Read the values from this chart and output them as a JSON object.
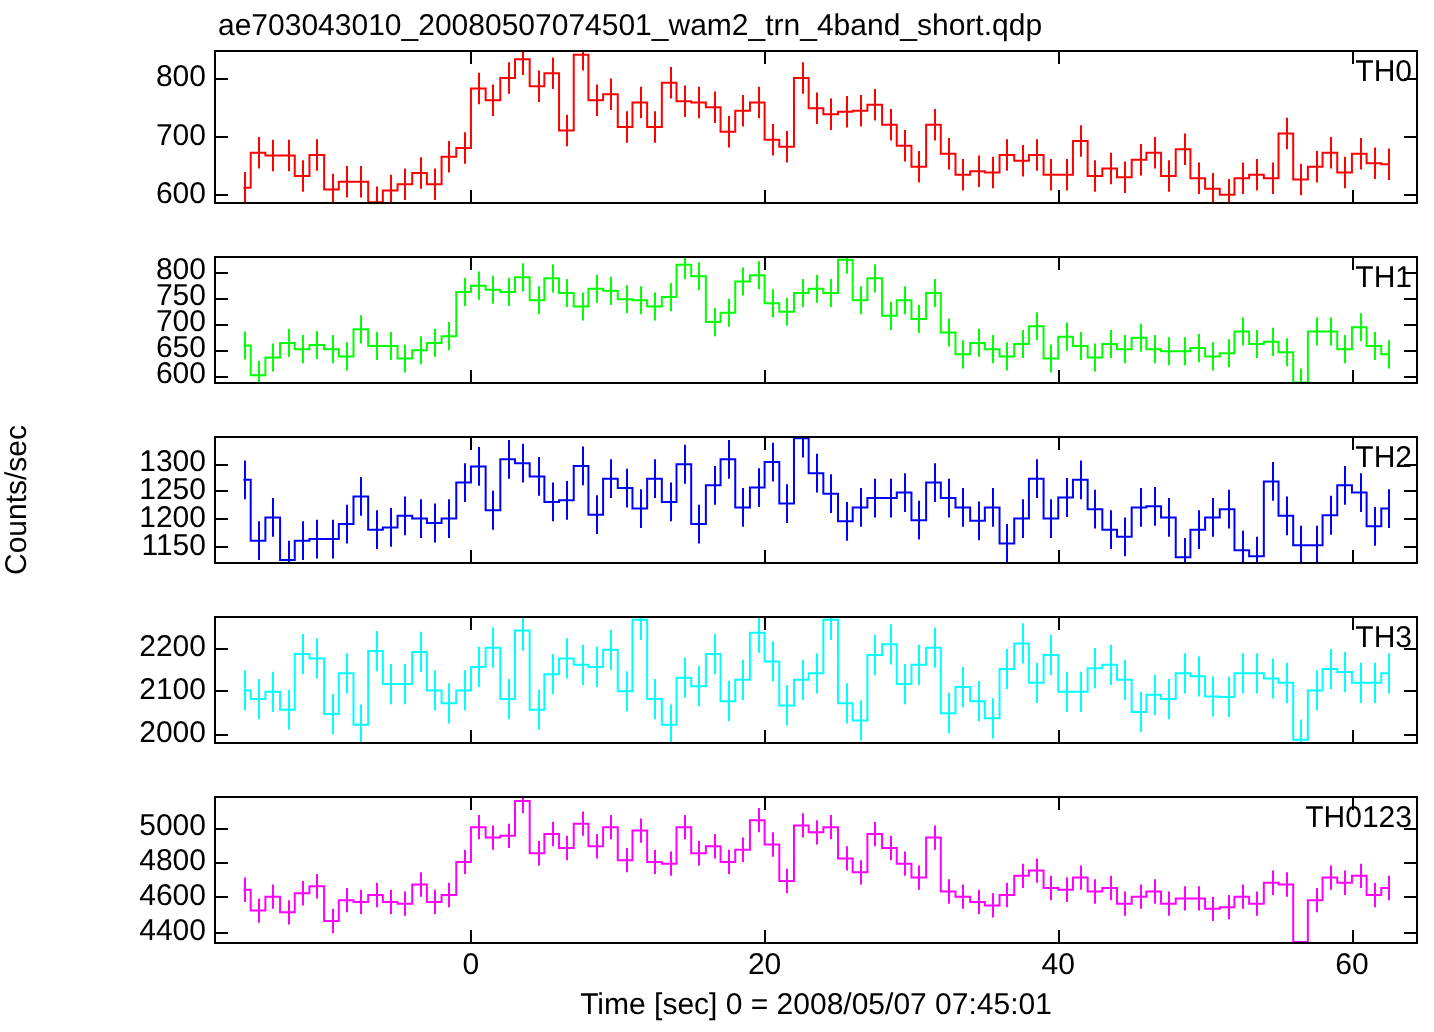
{
  "chart_data": [
    {
      "type": "step",
      "title": "ae703043010_20080507074501_wam2_trn_4band_short.qdp",
      "marker": "none",
      "tick_labels": "y",
      "xlim": [
        -17.5,
        64.5
      ],
      "xticks": [
        0,
        20,
        40,
        60
      ],
      "ylim": [
        584,
        848
      ],
      "yticks": [
        600,
        700,
        800
      ],
      "x": [
        -15.5,
        -14.5,
        -13.5,
        -12.5,
        -11.5,
        -10.5,
        -9.5,
        -8.5,
        -7.5,
        -6.5,
        -5.5,
        -4.5,
        -3.5,
        -2.5,
        -1.5,
        -0.5,
        0.5,
        1.5,
        2.5,
        3.5,
        4.5,
        5.5,
        6.5,
        7.5,
        8.5,
        9.5,
        10.5,
        11.5,
        12.5,
        13.5,
        14.5,
        15.5,
        16.5,
        17.5,
        18.5,
        19.5,
        20.5,
        21.5,
        22.5,
        23.5,
        24.5,
        25.5,
        26.5,
        27.5,
        28.5,
        29.5,
        30.5,
        31.5,
        32.5,
        33.5,
        34.5,
        35.5,
        36.5,
        37.5,
        38.5,
        39.5,
        40.5,
        41.5,
        42.5,
        43.5,
        44.5,
        45.5,
        46.5,
        47.5,
        48.5,
        49.5,
        50.5,
        51.5,
        52.5,
        53.5,
        54.5,
        55.5,
        56.5,
        57.5,
        58.5,
        59.5,
        60.5,
        61.5,
        62.5
      ],
      "series": [
        {
          "name": "TH0",
          "color": "#ff0000",
          "values": [
            612,
            672,
            667,
            667,
            632,
            668,
            609,
            622,
            622,
            587,
            607,
            618,
            637,
            618,
            665,
            680,
            782,
            762,
            800,
            832,
            786,
            808,
            710,
            840,
            762,
            772,
            716,
            758,
            716,
            792,
            760,
            758,
            750,
            708,
            744,
            758,
            694,
            682,
            800,
            748,
            738,
            742,
            744,
            754,
            720,
            684,
            648,
            720,
            670,
            634,
            640,
            638,
            668,
            658,
            668,
            634,
            634,
            692,
            632,
            645,
            630,
            660,
            672,
            632,
            678,
            628,
            610,
            600,
            628,
            634,
            628,
            705,
            626,
            648,
            672,
            638,
            670,
            654,
            652
          ],
          "errors": [
            27,
            27,
            27,
            27,
            27,
            27,
            27,
            27,
            27,
            27,
            27,
            27,
            27,
            27,
            27,
            27,
            27,
            27,
            27,
            27,
            27,
            27,
            27,
            27,
            27,
            27,
            27,
            27,
            27,
            27,
            27,
            27,
            27,
            27,
            27,
            27,
            27,
            27,
            27,
            27,
            27,
            27,
            27,
            27,
            27,
            27,
            27,
            27,
            27,
            27,
            27,
            27,
            27,
            27,
            27,
            27,
            27,
            27,
            27,
            27,
            27,
            27,
            27,
            27,
            27,
            27,
            27,
            27,
            27,
            27,
            27,
            27,
            27,
            27,
            27,
            27,
            27,
            27,
            27
          ]
        }
      ]
    },
    {
      "type": "step",
      "marker": "none",
      "tick_labels": "y",
      "xlim": [
        -17.5,
        64.5
      ],
      "xticks": [
        0,
        20,
        40,
        60
      ],
      "ylim": [
        583,
        829
      ],
      "yticks": [
        600,
        650,
        700,
        750,
        800
      ],
      "x": [
        -15.5,
        -14.5,
        -13.5,
        -12.5,
        -11.5,
        -10.5,
        -9.5,
        -8.5,
        -7.5,
        -6.5,
        -5.5,
        -4.5,
        -3.5,
        -2.5,
        -1.5,
        -0.5,
        0.5,
        1.5,
        2.5,
        3.5,
        4.5,
        5.5,
        6.5,
        7.5,
        8.5,
        9.5,
        10.5,
        11.5,
        12.5,
        13.5,
        14.5,
        15.5,
        16.5,
        17.5,
        18.5,
        19.5,
        20.5,
        21.5,
        22.5,
        23.5,
        24.5,
        25.5,
        26.5,
        27.5,
        28.5,
        29.5,
        30.5,
        31.5,
        32.5,
        33.5,
        34.5,
        35.5,
        36.5,
        37.5,
        38.5,
        39.5,
        40.5,
        41.5,
        42.5,
        43.5,
        44.5,
        45.5,
        46.5,
        47.5,
        48.5,
        49.5,
        50.5,
        51.5,
        52.5,
        53.5,
        54.5,
        55.5,
        56.5,
        57.5,
        58.5,
        59.5,
        60.5,
        61.5,
        62.5
      ],
      "series": [
        {
          "name": "TH1",
          "color": "#00ff00",
          "values": [
            657,
            600,
            634,
            662,
            650,
            658,
            650,
            636,
            688,
            656,
            656,
            632,
            648,
            662,
            675,
            760,
            772,
            764,
            760,
            788,
            744,
            786,
            758,
            732,
            766,
            762,
            746,
            744,
            732,
            750,
            812,
            790,
            702,
            720,
            780,
            792,
            738,
            722,
            758,
            766,
            758,
            822,
            744,
            786,
            714,
            744,
            708,
            758,
            682,
            640,
            662,
            650,
            636,
            660,
            694,
            632,
            674,
            656,
            634,
            660,
            650,
            672,
            650,
            646,
            646,
            652,
            636,
            642,
            684,
            660,
            664,
            644,
            586,
            684,
            684,
            650,
            692,
            656,
            640
          ],
          "errors": [
            27,
            27,
            27,
            27,
            27,
            27,
            27,
            27,
            27,
            27,
            27,
            27,
            27,
            27,
            27,
            27,
            27,
            27,
            27,
            27,
            27,
            27,
            27,
            27,
            27,
            27,
            27,
            27,
            27,
            27,
            27,
            27,
            27,
            27,
            27,
            27,
            27,
            27,
            27,
            27,
            27,
            27,
            27,
            27,
            27,
            27,
            27,
            27,
            27,
            27,
            27,
            27,
            27,
            27,
            27,
            27,
            27,
            27,
            27,
            27,
            27,
            27,
            27,
            27,
            27,
            27,
            27,
            27,
            27,
            27,
            27,
            27,
            27,
            27,
            27,
            27,
            27,
            27,
            27
          ]
        }
      ]
    },
    {
      "type": "step",
      "marker": "none",
      "tick_labels": "y",
      "ylabel": "Counts/sec",
      "xlim": [
        -17.5,
        64.5
      ],
      "xticks": [
        0,
        20,
        40,
        60
      ],
      "ylim": [
        1118,
        1349
      ],
      "yticks": [
        1150,
        1200,
        1250,
        1300
      ],
      "x": [
        -15.5,
        -14.5,
        -13.5,
        -12.5,
        -11.5,
        -10.5,
        -9.5,
        -8.5,
        -7.5,
        -6.5,
        -5.5,
        -4.5,
        -3.5,
        -2.5,
        -1.5,
        -0.5,
        0.5,
        1.5,
        2.5,
        3.5,
        4.5,
        5.5,
        6.5,
        7.5,
        8.5,
        9.5,
        10.5,
        11.5,
        12.5,
        13.5,
        14.5,
        15.5,
        16.5,
        17.5,
        18.5,
        19.5,
        20.5,
        21.5,
        22.5,
        23.5,
        24.5,
        25.5,
        26.5,
        27.5,
        28.5,
        29.5,
        30.5,
        31.5,
        32.5,
        33.5,
        34.5,
        35.5,
        36.5,
        37.5,
        38.5,
        39.5,
        40.5,
        41.5,
        42.5,
        43.5,
        44.5,
        45.5,
        46.5,
        47.5,
        48.5,
        49.5,
        50.5,
        51.5,
        52.5,
        53.5,
        54.5,
        55.5,
        56.5,
        57.5,
        58.5,
        59.5,
        60.5,
        61.5,
        62.5
      ],
      "series": [
        {
          "name": "TH2",
          "color": "#0000ff",
          "values": [
            1270,
            1160,
            1202,
            1125,
            1160,
            1163,
            1163,
            1190,
            1240,
            1180,
            1184,
            1205,
            1200,
            1192,
            1200,
            1265,
            1294,
            1215,
            1307,
            1300,
            1276,
            1230,
            1233,
            1295,
            1207,
            1272,
            1255,
            1218,
            1272,
            1230,
            1298,
            1190,
            1260,
            1307,
            1220,
            1256,
            1302,
            1227,
            1345,
            1282,
            1245,
            1195,
            1220,
            1237,
            1237,
            1247,
            1197,
            1265,
            1237,
            1220,
            1196,
            1220,
            1155,
            1200,
            1272,
            1200,
            1238,
            1270,
            1217,
            1180,
            1167,
            1220,
            1222,
            1202,
            1130,
            1180,
            1202,
            1217,
            1143,
            1132,
            1267,
            1205,
            1152,
            1152,
            1206,
            1260,
            1247,
            1186,
            1218
          ],
          "errors": [
            35,
            35,
            35,
            35,
            35,
            35,
            35,
            35,
            35,
            35,
            35,
            35,
            35,
            35,
            35,
            35,
            35,
            35,
            35,
            35,
            35,
            35,
            35,
            35,
            35,
            35,
            35,
            35,
            35,
            35,
            35,
            35,
            35,
            35,
            35,
            35,
            35,
            35,
            35,
            35,
            35,
            35,
            35,
            35,
            35,
            35,
            35,
            35,
            35,
            35,
            35,
            35,
            35,
            35,
            35,
            35,
            35,
            35,
            35,
            35,
            35,
            35,
            35,
            35,
            35,
            35,
            35,
            35,
            35,
            35,
            35,
            35,
            35,
            35,
            35,
            35,
            35,
            35,
            35
          ]
        }
      ]
    },
    {
      "type": "step",
      "marker": "none",
      "tick_labels": "y",
      "xlim": [
        -17.5,
        64.5
      ],
      "xticks": [
        0,
        20,
        40,
        60
      ],
      "ylim": [
        1975,
        2274
      ],
      "yticks": [
        2000,
        2100,
        2200
      ],
      "x": [
        -15.5,
        -14.5,
        -13.5,
        -12.5,
        -11.5,
        -10.5,
        -9.5,
        -8.5,
        -7.5,
        -6.5,
        -5.5,
        -4.5,
        -3.5,
        -2.5,
        -1.5,
        -0.5,
        0.5,
        1.5,
        2.5,
        3.5,
        4.5,
        5.5,
        6.5,
        7.5,
        8.5,
        9.5,
        10.5,
        11.5,
        12.5,
        13.5,
        14.5,
        15.5,
        16.5,
        17.5,
        18.5,
        19.5,
        20.5,
        21.5,
        22.5,
        23.5,
        24.5,
        25.5,
        26.5,
        27.5,
        28.5,
        29.5,
        30.5,
        31.5,
        32.5,
        33.5,
        34.5,
        35.5,
        36.5,
        37.5,
        38.5,
        39.5,
        40.5,
        41.5,
        42.5,
        43.5,
        44.5,
        45.5,
        46.5,
        47.5,
        48.5,
        49.5,
        50.5,
        51.5,
        52.5,
        53.5,
        54.5,
        55.5,
        56.5,
        57.5,
        58.5,
        59.5,
        60.5,
        61.5,
        62.5
      ],
      "series": [
        {
          "name": "TH3",
          "color": "#00ffff",
          "values": [
            2100,
            2080,
            2097,
            2055,
            2185,
            2175,
            2045,
            2140,
            2020,
            2192,
            2115,
            2115,
            2190,
            2100,
            2070,
            2100,
            2155,
            2200,
            2080,
            2240,
            2055,
            2138,
            2175,
            2160,
            2155,
            2195,
            2098,
            2265,
            2080,
            2020,
            2130,
            2110,
            2185,
            2075,
            2125,
            2235,
            2168,
            2065,
            2125,
            2140,
            2265,
            2070,
            2030,
            2183,
            2208,
            2115,
            2160,
            2200,
            2047,
            2108,
            2075,
            2035,
            2150,
            2210,
            2118,
            2183,
            2097,
            2097,
            2152,
            2160,
            2125,
            2050,
            2090,
            2080,
            2140,
            2133,
            2086,
            2085,
            2140,
            2140,
            2128,
            2118,
            1985,
            2100,
            2150,
            2143,
            2118,
            2118,
            2140
          ],
          "errors": [
            47,
            47,
            47,
            47,
            47,
            47,
            47,
            47,
            47,
            47,
            47,
            47,
            47,
            47,
            47,
            47,
            47,
            47,
            47,
            47,
            47,
            47,
            47,
            47,
            47,
            47,
            47,
            47,
            47,
            47,
            47,
            47,
            47,
            47,
            47,
            47,
            47,
            47,
            47,
            47,
            47,
            47,
            47,
            47,
            47,
            47,
            47,
            47,
            47,
            47,
            47,
            47,
            47,
            47,
            47,
            47,
            47,
            47,
            47,
            47,
            47,
            47,
            47,
            47,
            47,
            47,
            47,
            47,
            47,
            47,
            47,
            47,
            47,
            47,
            47,
            47,
            47,
            47,
            47
          ]
        }
      ]
    },
    {
      "type": "step",
      "marker": "none",
      "xlabel": "Time [sec] 0 = 2008/05/07 07:45:01",
      "xlim": [
        -17.5,
        64.5
      ],
      "xticks": [
        0,
        20,
        40,
        60
      ],
      "ylim": [
        4328,
        5179
      ],
      "yticks": [
        4400,
        4600,
        4800,
        5000
      ],
      "x": [
        -15.5,
        -14.5,
        -13.5,
        -12.5,
        -11.5,
        -10.5,
        -9.5,
        -8.5,
        -7.5,
        -6.5,
        -5.5,
        -4.5,
        -3.5,
        -2.5,
        -1.5,
        -0.5,
        0.5,
        1.5,
        2.5,
        3.5,
        4.5,
        5.5,
        6.5,
        7.5,
        8.5,
        9.5,
        10.5,
        11.5,
        12.5,
        13.5,
        14.5,
        15.5,
        16.5,
        17.5,
        18.5,
        19.5,
        20.5,
        21.5,
        22.5,
        23.5,
        24.5,
        25.5,
        26.5,
        27.5,
        28.5,
        29.5,
        30.5,
        31.5,
        32.5,
        33.5,
        34.5,
        35.5,
        36.5,
        37.5,
        38.5,
        39.5,
        40.5,
        41.5,
        42.5,
        43.5,
        44.5,
        45.5,
        46.5,
        47.5,
        48.5,
        49.5,
        50.5,
        51.5,
        52.5,
        53.5,
        54.5,
        55.5,
        56.5,
        57.5,
        58.5,
        59.5,
        60.5,
        61.5,
        62.5
      ],
      "series": [
        {
          "name": "TH0123",
          "color": "#ff00ff",
          "values": [
            4640,
            4520,
            4600,
            4510,
            4620,
            4660,
            4460,
            4580,
            4570,
            4610,
            4570,
            4560,
            4670,
            4570,
            4610,
            4800,
            5000,
            4940,
            4950,
            5150,
            4850,
            4960,
            4880,
            5020,
            4890,
            5000,
            4810,
            4980,
            4800,
            4790,
            5000,
            4850,
            4890,
            4800,
            4870,
            5040,
            4900,
            4690,
            5010,
            4970,
            5000,
            4820,
            4740,
            4960,
            4880,
            4790,
            4710,
            4940,
            4630,
            4600,
            4570,
            4550,
            4610,
            4720,
            4750,
            4650,
            4640,
            4710,
            4630,
            4650,
            4560,
            4600,
            4630,
            4560,
            4590,
            4590,
            4530,
            4540,
            4600,
            4560,
            4680,
            4670,
            4340,
            4580,
            4710,
            4680,
            4720,
            4610,
            4650
          ],
          "errors": [
            70,
            70,
            70,
            70,
            70,
            70,
            70,
            70,
            70,
            70,
            70,
            70,
            70,
            70,
            70,
            70,
            70,
            70,
            70,
            70,
            70,
            70,
            70,
            70,
            70,
            70,
            70,
            70,
            70,
            70,
            70,
            70,
            70,
            70,
            70,
            70,
            70,
            70,
            70,
            70,
            70,
            70,
            70,
            70,
            70,
            70,
            70,
            70,
            70,
            70,
            70,
            70,
            70,
            70,
            70,
            70,
            70,
            70,
            70,
            70,
            70,
            70,
            70,
            70,
            70,
            70,
            70,
            70,
            70,
            70,
            70,
            70,
            null,
            70,
            70,
            70,
            70,
            70,
            70
          ]
        }
      ]
    }
  ]
}
